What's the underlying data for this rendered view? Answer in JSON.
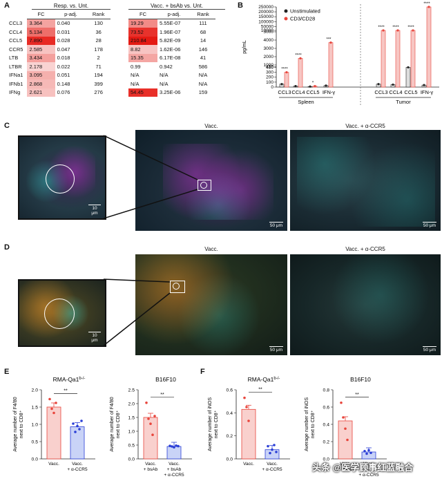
{
  "panels": {
    "A": "A",
    "B": "B",
    "C": "C",
    "D": "D",
    "E": "E",
    "F": "F"
  },
  "table_left": {
    "title": "Resp. vs. Unt.",
    "headers": [
      "FC",
      "p-adj.",
      "Rank"
    ],
    "rows": [
      {
        "gene": "CCL3",
        "fc": "3.364",
        "p": "0.040",
        "rank": "130",
        "shade": "#f4a3a0"
      },
      {
        "gene": "CCL4",
        "fc": "5.134",
        "p": "0.031",
        "rank": "36",
        "shade": "#ee6e6a"
      },
      {
        "gene": "CCL5",
        "fc": "7.890",
        "p": "0.028",
        "rank": "28",
        "shade": "#e82a24"
      },
      {
        "gene": "CCR5",
        "fc": "2.585",
        "p": "0.047",
        "rank": "178",
        "shade": "#f7c3c1"
      },
      {
        "gene": "LTB",
        "fc": "3.434",
        "p": "0.018",
        "rank": "2",
        "shade": "#f4a09d"
      },
      {
        "gene": "LTBR",
        "fc": "2.178",
        "p": "0.022",
        "rank": "71",
        "shade": "#f9d3d2"
      },
      {
        "gene": "IFNa1",
        "fc": "3.095",
        "p": "0.051",
        "rank": "194",
        "shade": "#f5b0ad"
      },
      {
        "gene": "IFNb1",
        "fc": "2.868",
        "p": "0.148",
        "rank": "399",
        "shade": "#f6b9b7"
      },
      {
        "gene": "IFNg",
        "fc": "2.621",
        "p": "0.076",
        "rank": "276",
        "shade": "#f7c1bf"
      }
    ]
  },
  "table_right": {
    "title": "Vacc. + bsAb vs. Unt.",
    "headers": [
      "FC",
      "p-adj.",
      "Rank"
    ],
    "rows": [
      {
        "fc": "19.29",
        "p": "5.55E-07",
        "rank": "111",
        "shade": "#f28b87"
      },
      {
        "fc": "73.52",
        "p": "1.96E-07",
        "rank": "68",
        "shade": "#e8322c"
      },
      {
        "fc": "210.84",
        "p": "5.82E-09",
        "rank": "14",
        "shade": "#e41a13"
      },
      {
        "fc": "8.82",
        "p": "1.62E-06",
        "rank": "146",
        "shade": "#f7c4c2"
      },
      {
        "fc": "15.35",
        "p": "6.17E-08",
        "rank": "41",
        "shade": "#f4a6a3"
      },
      {
        "fc": "0.99",
        "p": "0.942",
        "rank": "586",
        "shade": "#ffffff"
      },
      {
        "fc": "N/A",
        "p": "N/A",
        "rank": "N/A",
        "shade": "#ffffff"
      },
      {
        "fc": "N/A",
        "p": "N/A",
        "rank": "N/A",
        "shade": "#ffffff"
      },
      {
        "fc": "54.45",
        "p": "3.25E-06",
        "rank": "159",
        "shade": "#e82f29"
      }
    ]
  },
  "chart_data": [
    {
      "panel": "B",
      "type": "bar",
      "ylabel": "pg/mL",
      "yticks": [
        "0",
        "100",
        "200",
        "300",
        "400",
        "410",
        "1000",
        "2000",
        "3000",
        "4000",
        "5000",
        "10000",
        "50000",
        "100000",
        "150000",
        "200000",
        "250000"
      ],
      "categories": [
        "CCL3",
        "CCL4",
        "CCL5",
        "IFN-γ",
        "CCL3",
        "CCL4",
        "CCL5",
        "IFN-γ"
      ],
      "groups": [
        "Spleen",
        "Tumor"
      ],
      "series": [
        {
          "name": "Unstimulated",
          "color": "#222222",
          "values": [
            60,
            20,
            10,
            30,
            60,
            50,
            400,
            40
          ]
        },
        {
          "name": "CD3/CD28",
          "color": "#e8453c",
          "values": [
            300,
            1800,
            20,
            3700,
            9000,
            10000,
            9000,
            250000
          ]
        }
      ],
      "sig": [
        "****",
        "****",
        "*",
        "***",
        "****",
        "****",
        "****",
        "****"
      ]
    },
    {
      "panel": "E",
      "type": "bar",
      "title": "RMA-Qa1",
      "title_sup": "b-/-",
      "ylabel": "Average number of F4/80 next to CD8⁺",
      "categories": [
        "Vacc.",
        "Vacc. + α-CCR5"
      ],
      "values": [
        1.5,
        0.93
      ],
      "ylim": [
        0,
        2.0
      ],
      "yticks": [
        "0.0",
        "0.5",
        "1.0",
        "1.5",
        "2.0"
      ],
      "points": [
        [
          1.73,
          1.45,
          1.33,
          1.62
        ],
        [
          1.02,
          0.78,
          0.95,
          0.86,
          1.1
        ]
      ],
      "sig": "**"
    },
    {
      "panel": "E",
      "type": "bar",
      "title": "B16F10",
      "ylabel": "Average number of F4/80 next to CD8⁺",
      "categories": [
        "Vacc. + bsAb",
        "Vacc. + bsAb + α-CCR5"
      ],
      "values": [
        1.5,
        0.45
      ],
      "ylim": [
        0,
        2.5
      ],
      "yticks": [
        "0.0",
        "0.5",
        "1.0",
        "1.5",
        "2.0",
        "2.5"
      ],
      "points": [
        [
          2.03,
          1.45,
          1.27,
          0.87,
          1.55
        ],
        [
          0.47,
          0.45,
          0.42,
          0.48,
          0.46
        ]
      ],
      "sig": "**"
    },
    {
      "panel": "F",
      "type": "bar",
      "title": "RMA-Qa1",
      "title_sup": "b-/-",
      "ylabel": "Average number of iNOS next to CD8⁺",
      "categories": [
        "Vacc.",
        "Vacc. + α-CCR5"
      ],
      "values": [
        0.43,
        0.08
      ],
      "ylim": [
        0,
        0.6
      ],
      "yticks": [
        "0.0",
        "0.2",
        "0.4",
        "0.6"
      ],
      "points": [
        [
          0.53,
          0.45,
          0.33
        ],
        [
          0.11,
          0.05,
          0.08,
          0.12,
          0.06
        ]
      ],
      "sig": "**"
    },
    {
      "panel": "F",
      "type": "bar",
      "title": "B16F10",
      "ylabel": "Average number of iNOS next to CD8⁺",
      "categories": [
        "Vacc. + bsAb",
        "Vacc. + bsAb + α-CCR5"
      ],
      "values": [
        0.44,
        0.08
      ],
      "ylim": [
        0,
        0.8
      ],
      "yticks": [
        "0.0",
        "0.2",
        "0.4",
        "0.6",
        "0.8"
      ],
      "points": [
        [
          0.65,
          0.48,
          0.35,
          0.22
        ],
        [
          0.09,
          0.06,
          0.1,
          0.07
        ]
      ],
      "sig": "**"
    }
  ],
  "images": {
    "C": {
      "left_title": "Vacc.",
      "right_title": "Vacc. + α-CCR5",
      "scale_inset": "10 μm",
      "scale_main": "50 μm"
    },
    "D": {
      "left_title": "Vacc.",
      "right_title": "Vacc. + α-CCR5",
      "scale_inset": "10 μm",
      "scale_main": "50 μm"
    }
  },
  "watermark": "头条 @医学顾事红蓝融合",
  "colors": {
    "red": "#e8453c",
    "blue": "#2b3fd6",
    "teal": "#2fb8b0",
    "magenta": "#a033b3",
    "orange": "#d08a2a"
  }
}
